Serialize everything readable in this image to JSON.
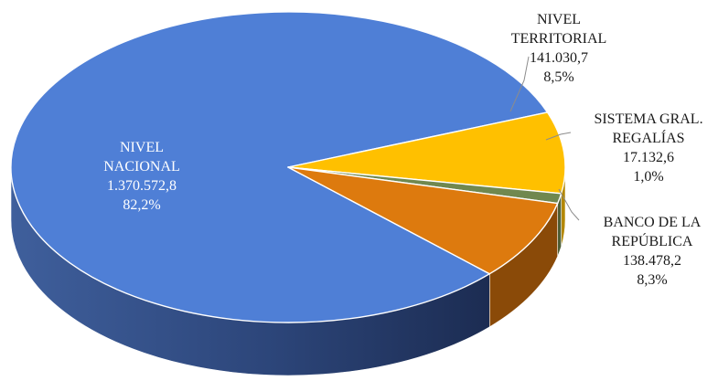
{
  "chart_data": {
    "type": "pie",
    "title": "",
    "slices": [
      {
        "label_lines": [
          "NIVEL",
          "NACIONAL"
        ],
        "value": "1.370.572,8",
        "percent": "82,2%",
        "amount": 1370572.8,
        "share": 82.2,
        "color": "#4f7fd6"
      },
      {
        "label_lines": [
          "NIVEL",
          "TERRITORIAL"
        ],
        "value": "141.030,7",
        "percent": "8,5%",
        "amount": 141030.7,
        "share": 8.5,
        "color": "#ffc000"
      },
      {
        "label_lines": [
          "SISTEMA GRAL.",
          "REGALÍAS"
        ],
        "value": "17.132,6",
        "percent": "1,0%",
        "amount": 17132.6,
        "share": 1.0,
        "color": "#70884f"
      },
      {
        "label_lines": [
          "BANCO  DE LA",
          "REPÚBLICA"
        ],
        "value": "138.478,2",
        "percent": "8,3%",
        "amount": 138478.2,
        "share": 8.3,
        "color": "#dd7a0e"
      }
    ]
  }
}
